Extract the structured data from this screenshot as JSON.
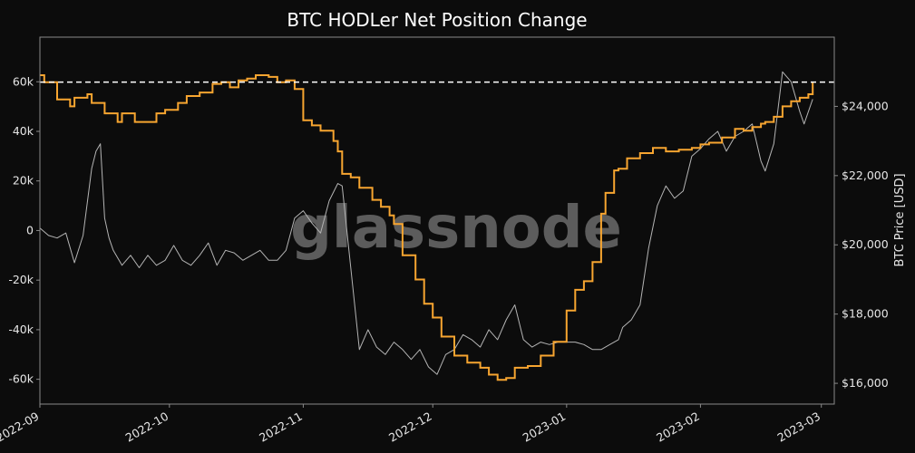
{
  "chart_data": {
    "type": "line",
    "title": "BTC HODLer Net Position Change",
    "watermark": "glassnode",
    "ylabel": "",
    "y2label": "BTC Price [USD]",
    "xlim": [
      "2022-09-01",
      "2023-03-04"
    ],
    "ylim": [
      -70000,
      78000
    ],
    "y2lim": [
      15400,
      26000
    ],
    "x_ticks": [
      "2022-09",
      "2022-10",
      "2022-11",
      "2022-12",
      "2023-01",
      "2023-02",
      "2023-03"
    ],
    "y_ticks": [
      60000,
      40000,
      20000,
      0,
      -20000,
      -40000,
      -60000
    ],
    "y_tick_labels": [
      "60k",
      "40k",
      "20k",
      "0",
      "-20k",
      "-40k",
      "-60k"
    ],
    "y2_ticks": [
      24000,
      22000,
      20000,
      18000,
      16000
    ],
    "y2_tick_labels": [
      "$24,000",
      "$22,000",
      "$20,000",
      "$18,000",
      "$16,000"
    ],
    "reference_line": {
      "axis": "y2",
      "value": 24700,
      "style": "dashed",
      "color": "#ffffff"
    },
    "colors": {
      "background": "#0c0c0c",
      "price": "#f7a530",
      "hodler": "#b4b4b4",
      "axes": "#8a8a8a"
    },
    "series": [
      {
        "axis": "y2",
        "x": [
          "2022-09-01",
          "2022-09-02",
          "2022-09-05",
          "2022-09-08",
          "2022-09-09",
          "2022-09-12",
          "2022-09-13",
          "2022-09-16",
          "2022-09-19",
          "2022-09-20",
          "2022-09-23",
          "2022-09-26",
          "2022-09-28",
          "2022-09-30",
          "2022-10-03",
          "2022-10-05",
          "2022-10-08",
          "2022-10-11",
          "2022-10-13",
          "2022-10-15",
          "2022-10-17",
          "2022-10-19",
          "2022-10-21",
          "2022-10-24",
          "2022-10-26",
          "2022-10-28",
          "2022-10-30",
          "2022-11-01",
          "2022-11-03",
          "2022-11-05",
          "2022-11-08",
          "2022-11-09",
          "2022-11-10",
          "2022-11-12",
          "2022-11-14",
          "2022-11-17",
          "2022-11-19",
          "2022-11-21",
          "2022-11-22",
          "2022-11-24",
          "2022-11-27",
          "2022-11-29",
          "2022-12-01",
          "2022-12-03",
          "2022-12-06",
          "2022-12-09",
          "2022-12-12",
          "2022-12-14",
          "2022-12-16",
          "2022-12-18",
          "2022-12-20",
          "2022-12-23",
          "2022-12-26",
          "2022-12-29",
          "2023-01-01",
          "2023-01-03",
          "2023-01-05",
          "2023-01-07",
          "2023-01-09",
          "2023-01-10",
          "2023-01-12",
          "2023-01-13",
          "2023-01-15",
          "2023-01-18",
          "2023-01-21",
          "2023-01-24",
          "2023-01-27",
          "2023-01-30",
          "2023-02-01",
          "2023-02-03",
          "2023-02-06",
          "2023-02-09",
          "2023-02-11",
          "2023-02-13",
          "2023-02-15",
          "2023-02-16",
          "2023-02-18",
          "2023-02-20",
          "2023-02-22",
          "2023-02-24",
          "2023-02-26",
          "2023-02-27"
        ],
        "values": [
          24900,
          24700,
          24200,
          24000,
          24250,
          24350,
          24100,
          23800,
          23550,
          23800,
          23550,
          23550,
          23800,
          23900,
          24100,
          24300,
          24400,
          24650,
          24700,
          24550,
          24750,
          24800,
          24900,
          24850,
          24700,
          24750,
          24500,
          23600,
          23450,
          23300,
          23000,
          22700,
          22050,
          21950,
          21650,
          21300,
          21100,
          20850,
          20600,
          19700,
          19000,
          18300,
          17900,
          17350,
          16800,
          16600,
          16450,
          16250,
          16100,
          16150,
          16450,
          16500,
          16800,
          17200,
          18100,
          18700,
          18950,
          19500,
          20900,
          21500,
          22150,
          22200,
          22500,
          22650,
          22800,
          22700,
          22750,
          22800,
          22900,
          22950,
          23100,
          23350,
          23300,
          23400,
          23500,
          23550,
          23700,
          24000,
          24150,
          24250,
          24350,
          24700
        ]
      },
      {
        "axis": "y",
        "x": [
          "2022-09-01",
          "2022-09-03",
          "2022-09-05",
          "2022-09-07",
          "2022-09-09",
          "2022-09-11",
          "2022-09-13",
          "2022-09-14",
          "2022-09-15",
          "2022-09-16",
          "2022-09-17",
          "2022-09-18",
          "2022-09-20",
          "2022-09-22",
          "2022-09-24",
          "2022-09-26",
          "2022-09-28",
          "2022-09-30",
          "2022-10-02",
          "2022-10-04",
          "2022-10-06",
          "2022-10-08",
          "2022-10-10",
          "2022-10-12",
          "2022-10-14",
          "2022-10-16",
          "2022-10-18",
          "2022-10-20",
          "2022-10-22",
          "2022-10-24",
          "2022-10-26",
          "2022-10-28",
          "2022-10-30",
          "2022-11-01",
          "2022-11-03",
          "2022-11-05",
          "2022-11-07",
          "2022-11-09",
          "2022-11-10",
          "2022-11-12",
          "2022-11-14",
          "2022-11-16",
          "2022-11-18",
          "2022-11-20",
          "2022-11-22",
          "2022-11-24",
          "2022-11-26",
          "2022-11-28",
          "2022-11-30",
          "2022-12-02",
          "2022-12-04",
          "2022-12-06",
          "2022-12-08",
          "2022-12-10",
          "2022-12-12",
          "2022-12-14",
          "2022-12-16",
          "2022-12-18",
          "2022-12-20",
          "2022-12-22",
          "2022-12-24",
          "2022-12-26",
          "2022-12-28",
          "2022-12-30",
          "2023-01-01",
          "2023-01-03",
          "2023-01-05",
          "2023-01-07",
          "2023-01-09",
          "2023-01-11",
          "2023-01-13",
          "2023-01-14",
          "2023-01-16",
          "2023-01-18",
          "2023-01-20",
          "2023-01-22",
          "2023-01-24",
          "2023-01-26",
          "2023-01-28",
          "2023-01-30",
          "2023-02-01",
          "2023-02-03",
          "2023-02-05",
          "2023-02-07",
          "2023-02-09",
          "2023-02-11",
          "2023-02-13",
          "2023-02-15",
          "2023-02-16",
          "2023-02-18",
          "2023-02-20",
          "2023-02-22",
          "2023-02-24",
          "2023-02-25",
          "2023-02-27"
        ],
        "values": [
          1000,
          -2000,
          -3000,
          -1000,
          -13000,
          -2000,
          25000,
          32000,
          35000,
          5000,
          -3000,
          -8000,
          -14000,
          -10000,
          -15000,
          -10000,
          -14000,
          -12000,
          -6000,
          -12000,
          -14000,
          -10000,
          -5000,
          -14000,
          -8000,
          -9000,
          -12000,
          -10000,
          -8000,
          -12000,
          -12000,
          -8000,
          5000,
          8000,
          3000,
          -1000,
          12000,
          19000,
          18000,
          -15000,
          -48000,
          -40000,
          -47000,
          -50000,
          -45000,
          -48000,
          -52000,
          -48000,
          -55000,
          -58000,
          -50000,
          -48000,
          -42000,
          -44000,
          -47000,
          -40000,
          -44000,
          -36000,
          -30000,
          -44000,
          -47000,
          -45000,
          -46000,
          -45000,
          -45000,
          -45000,
          -46000,
          -48000,
          -48000,
          -46000,
          -44000,
          -39000,
          -36000,
          -30000,
          -7000,
          10000,
          18000,
          13000,
          16000,
          30000,
          33000,
          37000,
          40000,
          32000,
          38000,
          40000,
          43000,
          28000,
          24000,
          35000,
          64000,
          60000,
          48000,
          43000,
          53000
        ]
      }
    ]
  }
}
